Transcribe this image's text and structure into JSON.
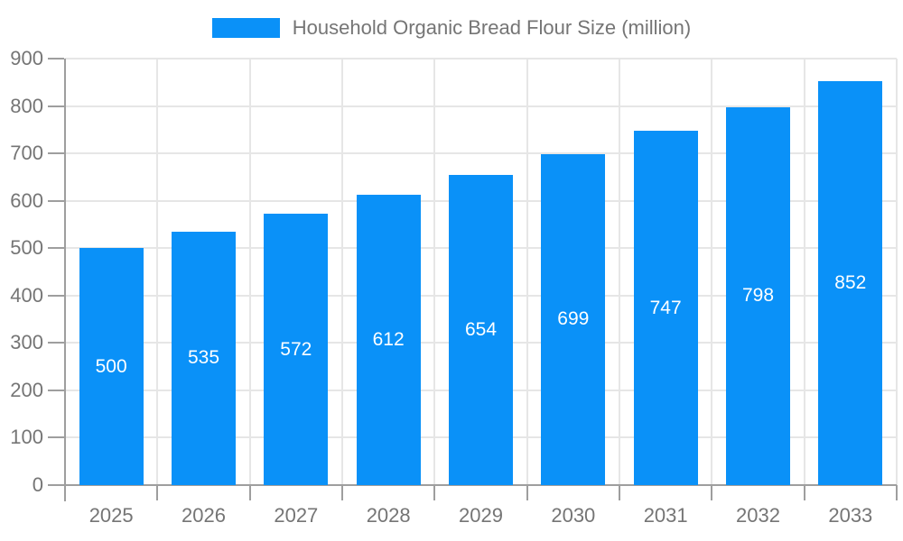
{
  "legend": {
    "label": "Household Organic Bread Flour Size (million)"
  },
  "chart_data": {
    "type": "bar",
    "title": "Household Organic Bread Flour Size (million)",
    "categories": [
      "2025",
      "2026",
      "2027",
      "2028",
      "2029",
      "2030",
      "2031",
      "2032",
      "2033"
    ],
    "values": [
      500,
      535,
      572,
      612,
      654,
      699,
      747,
      798,
      852
    ],
    "xlabel": "",
    "ylabel": "",
    "ylim": [
      0,
      900
    ],
    "ytick_step": 100,
    "ytick_labels": [
      "0",
      "100",
      "200",
      "300",
      "400",
      "500",
      "600",
      "700",
      "800",
      "900"
    ],
    "grid": true,
    "legend_position": "top-center",
    "value_labels": "inside-center",
    "colors": {
      "bar": "#0a91f8",
      "value_text": "#ffffff",
      "grid": "#e6e6e6",
      "axis": "#9e9e9e",
      "tick_text": "#757575"
    }
  }
}
